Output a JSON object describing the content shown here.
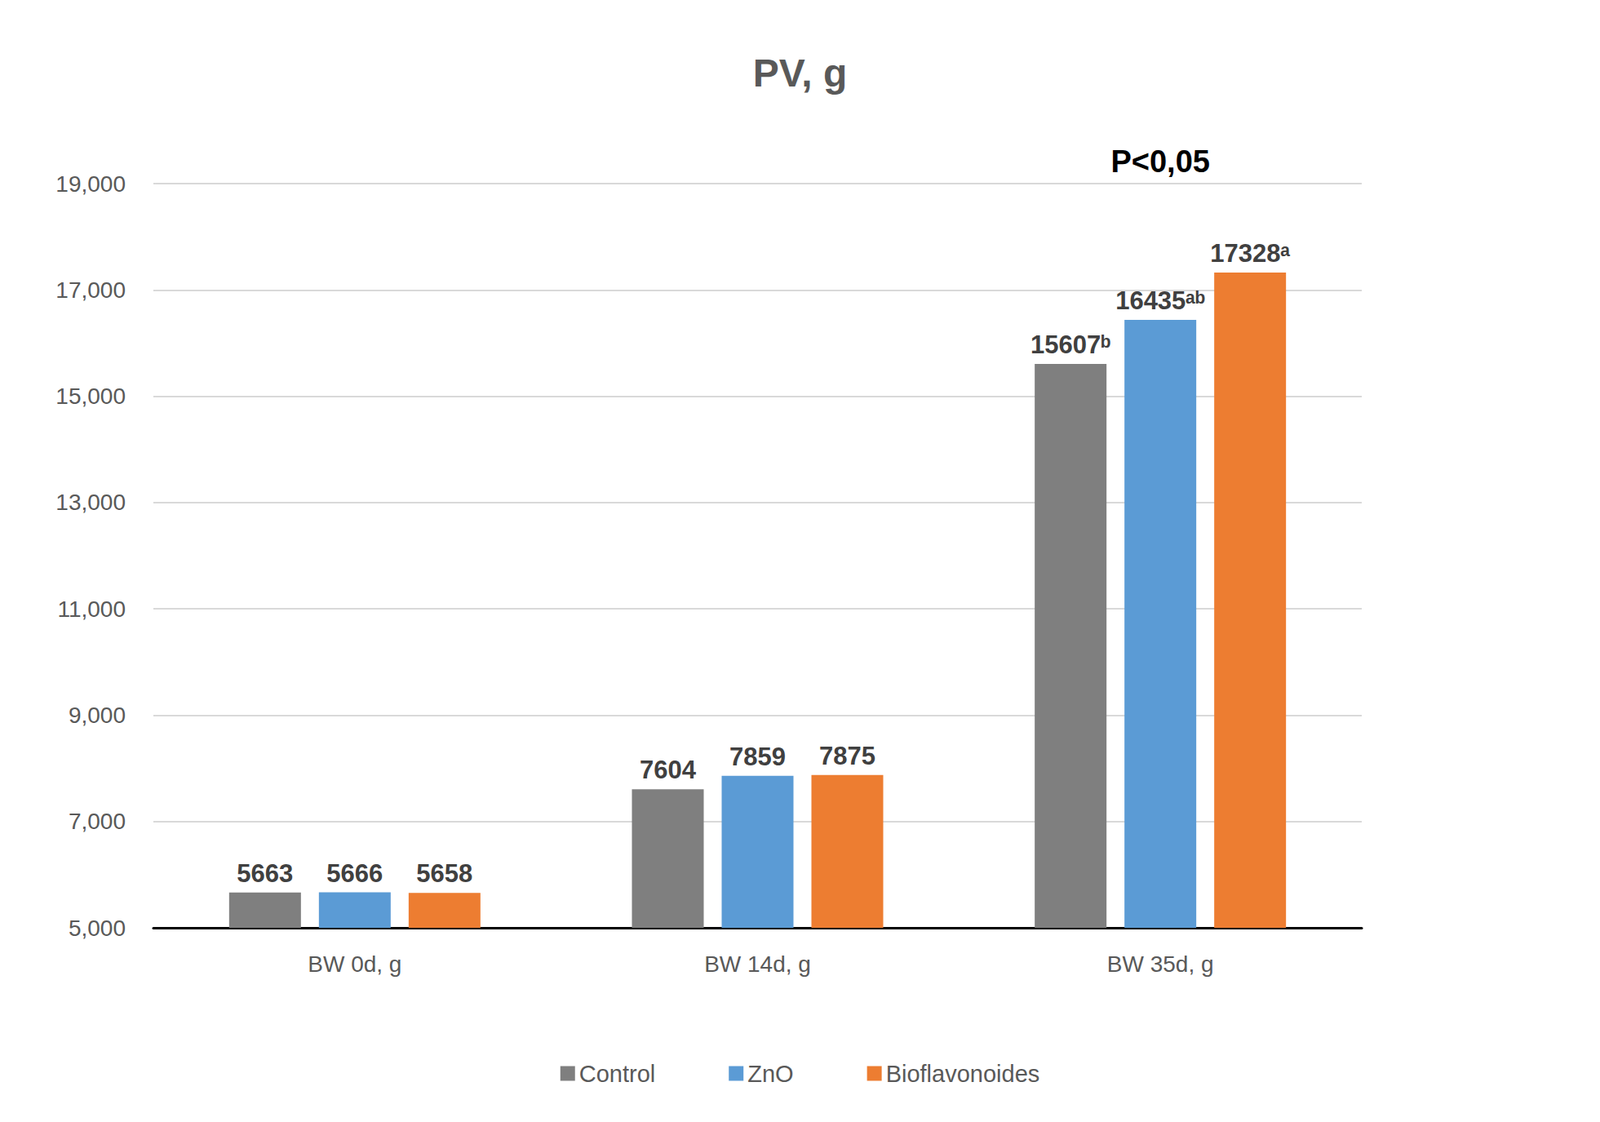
{
  "chart_data": {
    "type": "bar",
    "title": "PV, g",
    "categories": [
      "BW 0d, g",
      "BW 14d, g",
      "BW 35d, g"
    ],
    "series": [
      {
        "name": "Control",
        "color": "#7f7f7f",
        "values": [
          5663,
          7604,
          15607
        ],
        "value_labels": [
          "5663",
          "7604",
          "15607ᵇ"
        ]
      },
      {
        "name": "ZnO",
        "color": "#5b9bd5",
        "values": [
          5666,
          7859,
          16435
        ],
        "value_labels": [
          "5666",
          "7859",
          "16435ᵃᵇ"
        ]
      },
      {
        "name": "Bioflavonoides",
        "color": "#ed7d31",
        "values": [
          5658,
          7875,
          17328
        ],
        "value_labels": [
          "5658",
          "7875",
          "17328ᵃ"
        ]
      }
    ],
    "annotations": [
      {
        "text": "P<0,05",
        "category": "BW 35d, g"
      }
    ],
    "ylim": [
      5000,
      19000
    ],
    "yticks": [
      5000,
      7000,
      9000,
      11000,
      13000,
      15000,
      17000,
      19000
    ],
    "grid": true,
    "data_labels": true,
    "legend": "bottom"
  }
}
